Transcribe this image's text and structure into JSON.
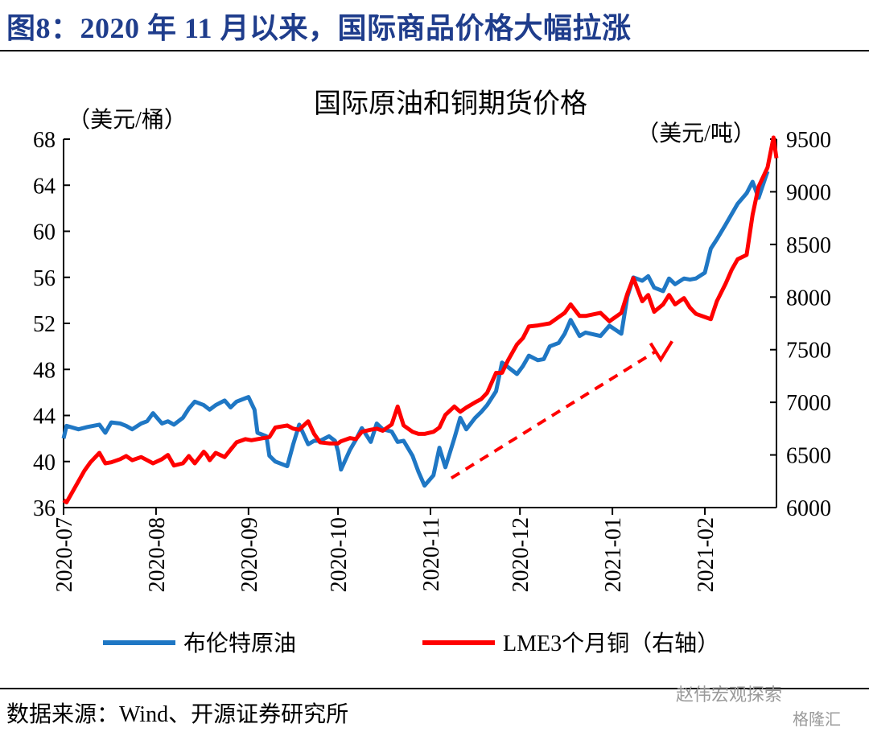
{
  "figure_title": "图8：2020 年 11 月以来，国际商品价格大幅拉涨",
  "source_note": "数据来源：Wind、开源证券研究所",
  "watermark": "赵伟宏观探索",
  "watermark2": "格隆汇",
  "colors": {
    "title_blue": "#1f3d8c",
    "brent": "#1f77c4",
    "copper": "#ff0000",
    "arrow": "#ff0000"
  },
  "chart_data": {
    "type": "line",
    "title": "国际原油和铜期货价格",
    "ylabel_left": "（美元/桶）",
    "ylabel_right": "（美元/吨）",
    "x_ticks": [
      "2020-07",
      "2020-08",
      "2020-09",
      "2020-10",
      "2020-11",
      "2020-12",
      "2021-01",
      "2021-02"
    ],
    "x_range": [
      "2020-07-01",
      "2021-02-25"
    ],
    "ylim_left": [
      36,
      68
    ],
    "yticks_left": [
      36,
      40,
      44,
      48,
      52,
      56,
      60,
      64,
      68
    ],
    "ylim_right": [
      6000,
      9500
    ],
    "yticks_right": [
      6000,
      6500,
      7000,
      7500,
      8000,
      8500,
      9000,
      9500
    ],
    "grid": false,
    "legend_position": "bottom",
    "series": [
      {
        "name": "布伦特原油",
        "axis": "left",
        "color": "#1f77c4",
        "points": [
          [
            "2020-07-01",
            42.0
          ],
          [
            "2020-07-02",
            43.1
          ],
          [
            "2020-07-06",
            42.8
          ],
          [
            "2020-07-09",
            43.0
          ],
          [
            "2020-07-13",
            43.2
          ],
          [
            "2020-07-15",
            42.5
          ],
          [
            "2020-07-17",
            43.4
          ],
          [
            "2020-07-20",
            43.3
          ],
          [
            "2020-07-22",
            43.1
          ],
          [
            "2020-07-24",
            42.8
          ],
          [
            "2020-07-27",
            43.3
          ],
          [
            "2020-07-29",
            43.5
          ],
          [
            "2020-07-31",
            44.2
          ],
          [
            "2020-08-03",
            43.3
          ],
          [
            "2020-08-05",
            43.5
          ],
          [
            "2020-08-07",
            43.2
          ],
          [
            "2020-08-10",
            43.8
          ],
          [
            "2020-08-12",
            44.6
          ],
          [
            "2020-08-14",
            45.2
          ],
          [
            "2020-08-17",
            44.9
          ],
          [
            "2020-08-19",
            44.5
          ],
          [
            "2020-08-21",
            44.9
          ],
          [
            "2020-08-24",
            45.3
          ],
          [
            "2020-08-26",
            44.7
          ],
          [
            "2020-08-28",
            45.2
          ],
          [
            "2020-08-31",
            45.5
          ],
          [
            "2020-09-01",
            45.6
          ],
          [
            "2020-09-03",
            44.5
          ],
          [
            "2020-09-04",
            42.5
          ],
          [
            "2020-09-07",
            42.2
          ],
          [
            "2020-09-08",
            40.5
          ],
          [
            "2020-09-10",
            40.0
          ],
          [
            "2020-09-14",
            39.6
          ],
          [
            "2020-09-16",
            41.5
          ],
          [
            "2020-09-18",
            43.2
          ],
          [
            "2020-09-21",
            41.5
          ],
          [
            "2020-09-23",
            41.8
          ],
          [
            "2020-09-25",
            41.8
          ],
          [
            "2020-09-28",
            42.2
          ],
          [
            "2020-09-30",
            41.8
          ],
          [
            "2020-10-01",
            40.9
          ],
          [
            "2020-10-02",
            39.3
          ],
          [
            "2020-10-05",
            41.0
          ],
          [
            "2020-10-07",
            41.9
          ],
          [
            "2020-10-09",
            42.9
          ],
          [
            "2020-10-12",
            41.7
          ],
          [
            "2020-10-14",
            43.3
          ],
          [
            "2020-10-16",
            42.8
          ],
          [
            "2020-10-19",
            42.6
          ],
          [
            "2020-10-21",
            41.7
          ],
          [
            "2020-10-23",
            41.8
          ],
          [
            "2020-10-26",
            40.5
          ],
          [
            "2020-10-28",
            39.1
          ],
          [
            "2020-10-30",
            37.9
          ],
          [
            "2020-11-02",
            38.8
          ],
          [
            "2020-11-04",
            41.2
          ],
          [
            "2020-11-06",
            39.5
          ],
          [
            "2020-11-09",
            42.0
          ],
          [
            "2020-11-11",
            43.8
          ],
          [
            "2020-11-13",
            42.8
          ],
          [
            "2020-11-16",
            43.8
          ],
          [
            "2020-11-18",
            44.3
          ],
          [
            "2020-11-20",
            44.9
          ],
          [
            "2020-11-23",
            46.1
          ],
          [
            "2020-11-25",
            48.6
          ],
          [
            "2020-11-27",
            48.2
          ],
          [
            "2020-11-30",
            47.6
          ],
          [
            "2020-12-02",
            48.3
          ],
          [
            "2020-12-04",
            49.2
          ],
          [
            "2020-12-07",
            48.8
          ],
          [
            "2020-12-09",
            48.9
          ],
          [
            "2020-12-11",
            50.0
          ],
          [
            "2020-12-14",
            50.3
          ],
          [
            "2020-12-16",
            51.1
          ],
          [
            "2020-12-18",
            52.3
          ],
          [
            "2020-12-21",
            50.9
          ],
          [
            "2020-12-23",
            51.2
          ],
          [
            "2020-12-28",
            50.9
          ],
          [
            "2020-12-31",
            51.8
          ],
          [
            "2021-01-04",
            51.1
          ],
          [
            "2021-01-06",
            54.3
          ],
          [
            "2021-01-08",
            55.99
          ],
          [
            "2021-01-11",
            55.7
          ],
          [
            "2021-01-13",
            56.1
          ],
          [
            "2021-01-15",
            55.1
          ],
          [
            "2021-01-18",
            54.8
          ],
          [
            "2021-01-20",
            55.9
          ],
          [
            "2021-01-22",
            55.4
          ],
          [
            "2021-01-25",
            55.9
          ],
          [
            "2021-01-27",
            55.8
          ],
          [
            "2021-01-29",
            55.9
          ],
          [
            "2021-02-01",
            56.4
          ],
          [
            "2021-02-03",
            58.5
          ],
          [
            "2021-02-05",
            59.3
          ],
          [
            "2021-02-08",
            60.6
          ],
          [
            "2021-02-10",
            61.5
          ],
          [
            "2021-02-12",
            62.4
          ],
          [
            "2021-02-15",
            63.3
          ],
          [
            "2021-02-17",
            64.3
          ],
          [
            "2021-02-19",
            62.9
          ],
          [
            "2021-02-22",
            65.2
          ]
        ]
      },
      {
        "name": "LME3个月铜（右轴）",
        "axis": "right",
        "color": "#ff0000",
        "points": [
          [
            "2020-07-01",
            6070
          ],
          [
            "2020-07-02",
            6050
          ],
          [
            "2020-07-06",
            6250
          ],
          [
            "2020-07-08",
            6350
          ],
          [
            "2020-07-10",
            6430
          ],
          [
            "2020-07-13",
            6520
          ],
          [
            "2020-07-15",
            6420
          ],
          [
            "2020-07-17",
            6430
          ],
          [
            "2020-07-20",
            6460
          ],
          [
            "2020-07-22",
            6490
          ],
          [
            "2020-07-24",
            6450
          ],
          [
            "2020-07-27",
            6480
          ],
          [
            "2020-07-29",
            6450
          ],
          [
            "2020-07-31",
            6420
          ],
          [
            "2020-08-03",
            6460
          ],
          [
            "2020-08-05",
            6500
          ],
          [
            "2020-08-07",
            6400
          ],
          [
            "2020-08-10",
            6420
          ],
          [
            "2020-08-12",
            6490
          ],
          [
            "2020-08-14",
            6420
          ],
          [
            "2020-08-17",
            6530
          ],
          [
            "2020-08-18",
            6500
          ],
          [
            "2020-08-19",
            6450
          ],
          [
            "2020-08-21",
            6520
          ],
          [
            "2020-08-24",
            6480
          ],
          [
            "2020-08-26",
            6550
          ],
          [
            "2020-08-28",
            6620
          ],
          [
            "2020-08-31",
            6650
          ],
          [
            "2020-09-02",
            6640
          ],
          [
            "2020-09-04",
            6650
          ],
          [
            "2020-09-08",
            6670
          ],
          [
            "2020-09-10",
            6760
          ],
          [
            "2020-09-14",
            6780
          ],
          [
            "2020-09-16",
            6750
          ],
          [
            "2020-09-18",
            6740
          ],
          [
            "2020-09-21",
            6820
          ],
          [
            "2020-09-23",
            6700
          ],
          [
            "2020-09-25",
            6620
          ],
          [
            "2020-09-28",
            6610
          ],
          [
            "2020-09-30",
            6610
          ],
          [
            "2020-10-01",
            6610
          ],
          [
            "2020-10-02",
            6630
          ],
          [
            "2020-10-05",
            6660
          ],
          [
            "2020-10-07",
            6650
          ],
          [
            "2020-10-09",
            6720
          ],
          [
            "2020-10-12",
            6740
          ],
          [
            "2020-10-14",
            6750
          ],
          [
            "2020-10-16",
            6730
          ],
          [
            "2020-10-19",
            6790
          ],
          [
            "2020-10-21",
            6960
          ],
          [
            "2020-10-23",
            6780
          ],
          [
            "2020-10-26",
            6720
          ],
          [
            "2020-10-28",
            6700
          ],
          [
            "2020-10-30",
            6700
          ],
          [
            "2020-11-02",
            6720
          ],
          [
            "2020-11-04",
            6760
          ],
          [
            "2020-11-06",
            6880
          ],
          [
            "2020-11-09",
            6960
          ],
          [
            "2020-11-11",
            6910
          ],
          [
            "2020-11-13",
            6950
          ],
          [
            "2020-11-16",
            7000
          ],
          [
            "2020-11-18",
            7030
          ],
          [
            "2020-11-20",
            7090
          ],
          [
            "2020-11-23",
            7280
          ],
          [
            "2020-11-25",
            7280
          ],
          [
            "2020-11-27",
            7400
          ],
          [
            "2020-11-30",
            7550
          ],
          [
            "2020-12-02",
            7610
          ],
          [
            "2020-12-04",
            7720
          ],
          [
            "2020-12-07",
            7730
          ],
          [
            "2020-12-09",
            7740
          ],
          [
            "2020-12-11",
            7750
          ],
          [
            "2020-12-14",
            7810
          ],
          [
            "2020-12-16",
            7850
          ],
          [
            "2020-12-18",
            7930
          ],
          [
            "2020-12-21",
            7820
          ],
          [
            "2020-12-23",
            7820
          ],
          [
            "2020-12-28",
            7850
          ],
          [
            "2020-12-31",
            7770
          ],
          [
            "2021-01-04",
            7850
          ],
          [
            "2021-01-06",
            8030
          ],
          [
            "2021-01-08",
            8180
          ],
          [
            "2021-01-11",
            7960
          ],
          [
            "2021-01-13",
            8020
          ],
          [
            "2021-01-15",
            7860
          ],
          [
            "2021-01-18",
            7930
          ],
          [
            "2021-01-20",
            8020
          ],
          [
            "2021-01-22",
            7930
          ],
          [
            "2021-01-25",
            7990
          ],
          [
            "2021-01-27",
            7900
          ],
          [
            "2021-01-29",
            7840
          ],
          [
            "2021-02-01",
            7810
          ],
          [
            "2021-02-03",
            7790
          ],
          [
            "2021-02-05",
            7960
          ],
          [
            "2021-02-08",
            8130
          ],
          [
            "2021-02-10",
            8260
          ],
          [
            "2021-02-12",
            8360
          ],
          [
            "2021-02-15",
            8400
          ],
          [
            "2021-02-17",
            8780
          ],
          [
            "2021-02-19",
            9050
          ],
          [
            "2021-02-22",
            9230
          ],
          [
            "2021-02-24",
            9550
          ],
          [
            "2021-02-25",
            9320
          ]
        ]
      }
    ],
    "annotations": [
      {
        "type": "arrow",
        "style": "dashed",
        "color": "#ff0000",
        "from": [
          "2020-11-08",
          6280
        ],
        "to": [
          "2021-01-21",
          7580
        ]
      }
    ]
  }
}
